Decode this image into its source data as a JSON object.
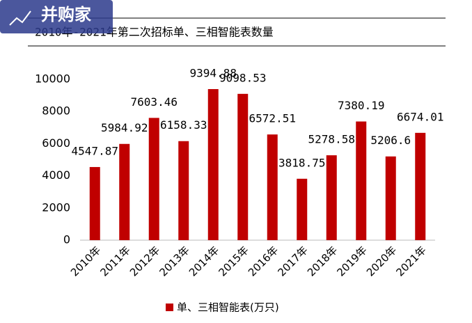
{
  "watermark": "并购家",
  "chart_data": {
    "type": "bar",
    "title": "2010年-2021年第二次招标单、三相智能表数量",
    "categories": [
      "2010年",
      "2011年",
      "2012年",
      "2013年",
      "2014年",
      "2015年",
      "2016年",
      "2017年",
      "2018年",
      "2019年",
      "2020年",
      "2021年"
    ],
    "series": [
      {
        "name": "单、三相智能表(万只)",
        "color": "#c00000",
        "values": [
          4547.87,
          5984.92,
          7603.46,
          6158.33,
          9394.88,
          9098.53,
          6572.51,
          3818.75,
          5278.58,
          7380.19,
          5206.6,
          6674.01
        ]
      }
    ],
    "ylim": [
      0,
      10000
    ],
    "yticks": [
      0,
      2000,
      4000,
      6000,
      8000,
      10000
    ],
    "grid": false,
    "legend": "bottom"
  }
}
